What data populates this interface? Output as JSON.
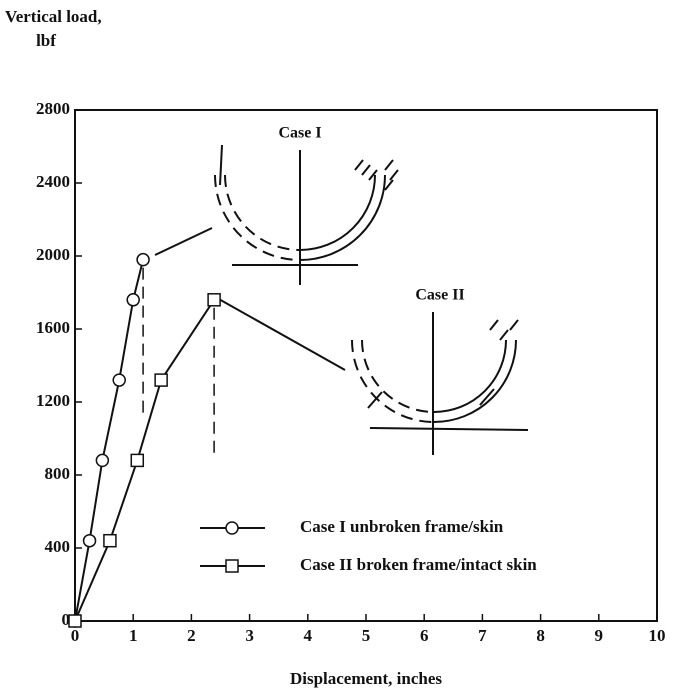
{
  "chart_data": {
    "type": "line",
    "ylabel": [
      "Vertical load,",
      "lbf"
    ],
    "xlabel": "Displacement, inches",
    "xlim": [
      0,
      10
    ],
    "xticks": [
      0,
      1,
      2,
      3,
      4,
      5,
      6,
      7,
      8,
      9,
      10
    ],
    "ylim": [
      0,
      2800
    ],
    "yticks": [
      0,
      400,
      800,
      1200,
      1600,
      2000,
      2400,
      2800
    ],
    "annotations": [
      "Case I",
      "Case II"
    ],
    "series": [
      {
        "name": "Case I  unbroken frame/skin",
        "color": "#111111",
        "marker": "circle",
        "x": [
          0,
          0.25,
          0.47,
          0.76,
          1.0,
          1.17
        ],
        "values": [
          0,
          440,
          880,
          1320,
          1760,
          1980
        ]
      },
      {
        "name": "Case II  broken frame/intact skin",
        "color": "#111111",
        "marker": "square",
        "x": [
          0,
          0.6,
          1.07,
          1.48,
          2.39
        ],
        "values": [
          0,
          440,
          880,
          1320,
          1760
        ]
      }
    ]
  }
}
